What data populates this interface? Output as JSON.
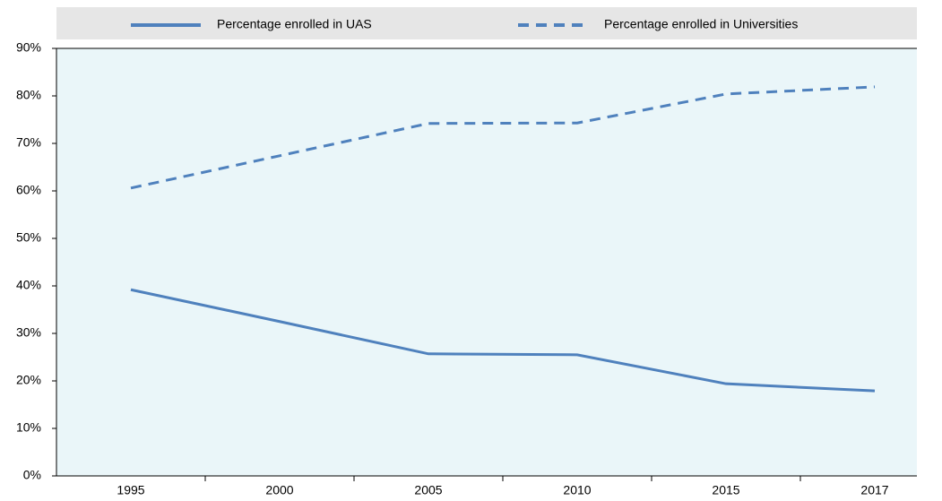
{
  "chart_data": {
    "type": "line",
    "categories": [
      "1995",
      "2000",
      "2005",
      "2010",
      "2015",
      "2017"
    ],
    "series": [
      {
        "name": "Percentage enrolled in UAS",
        "color": "#4f81bd",
        "dash": false,
        "values": [
          39.2,
          32.5,
          25.7,
          25.5,
          19.4,
          17.9
        ]
      },
      {
        "name": "Percentage enrolled in Universities",
        "color": "#4f81bd",
        "dash": true,
        "values": [
          60.6,
          67.4,
          74.2,
          74.3,
          80.4,
          81.9
        ]
      }
    ],
    "ylim": [
      0,
      90
    ],
    "yticks": [
      {
        "value": 0,
        "label": "0%"
      },
      {
        "value": 10,
        "label": "10%"
      },
      {
        "value": 20,
        "label": "20%"
      },
      {
        "value": 30,
        "label": "30%"
      },
      {
        "value": 40,
        "label": "40%"
      },
      {
        "value": 50,
        "label": "50%"
      },
      {
        "value": 60,
        "label": "60%"
      },
      {
        "value": 70,
        "label": "70%"
      },
      {
        "value": 80,
        "label": "80%"
      },
      {
        "value": 90,
        "label": "90%"
      }
    ],
    "legend": "top"
  }
}
